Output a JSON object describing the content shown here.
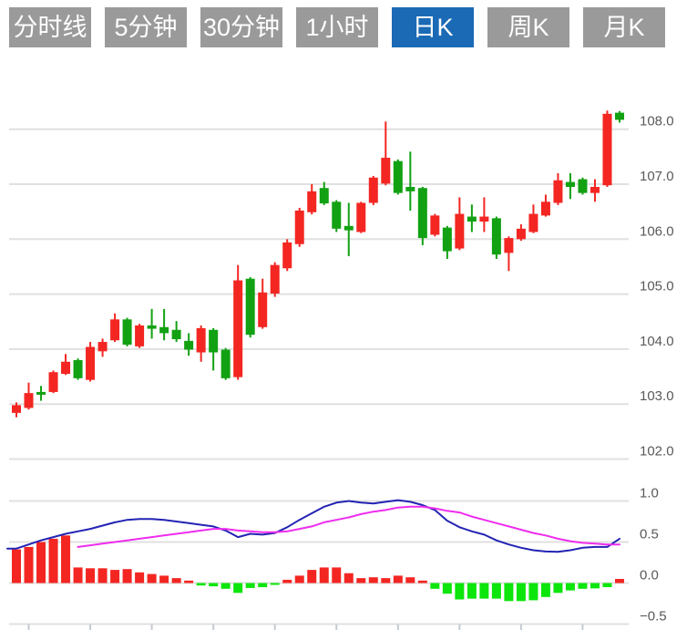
{
  "tabs": {
    "items": [
      {
        "label": "分时线",
        "active": false
      },
      {
        "label": "5分钟",
        "active": false
      },
      {
        "label": "30分钟",
        "active": false
      },
      {
        "label": "1小时",
        "active": false
      },
      {
        "label": "日K",
        "active": true
      },
      {
        "label": "周K",
        "active": false
      },
      {
        "label": "月K",
        "active": false
      }
    ]
  },
  "colors": {
    "tab_bg": "#9a9a9a",
    "tab_active_bg": "#1b6ab5",
    "tab_text": "#ffffff",
    "grid": "#e0e0e0",
    "axis_tick": "#c5cbd2",
    "axis_text": "#595959",
    "candle_up": "#f32622",
    "candle_down": "#12a112",
    "hist_up": "#f32622",
    "hist_down": "#0ce60c",
    "dif_line": "#2323b4",
    "dea_line": "#ee2dee"
  },
  "chart_data": {
    "type": "candlestick",
    "panels": [
      {
        "name": "price",
        "y_ticks": [
          "108.0",
          "107.0",
          "106.0",
          "105.0",
          "104.0",
          "103.0",
          "102.0"
        ],
        "ylim": [
          101.6,
          108.6
        ],
        "grid": true,
        "legend": "none",
        "ohlc_order": [
          "open",
          "close",
          "high",
          "low"
        ],
        "candles": [
          [
            102.84,
            102.98,
            103.03,
            102.76
          ],
          [
            102.93,
            103.2,
            103.39,
            102.9
          ],
          [
            103.22,
            103.17,
            103.33,
            103.06
          ],
          [
            103.22,
            103.58,
            103.61,
            103.2
          ],
          [
            103.55,
            103.77,
            103.91,
            103.53
          ],
          [
            103.8,
            103.47,
            103.83,
            103.44
          ],
          [
            103.44,
            104.04,
            104.13,
            103.41
          ],
          [
            103.96,
            104.13,
            104.19,
            103.86
          ],
          [
            104.16,
            104.54,
            104.65,
            104.13
          ],
          [
            104.54,
            104.08,
            104.57,
            104.05
          ],
          [
            104.05,
            104.43,
            104.46,
            104.02
          ],
          [
            104.43,
            104.37,
            104.73,
            104.19
          ],
          [
            104.4,
            104.29,
            104.73,
            104.16
          ],
          [
            104.35,
            104.18,
            104.51,
            104.13
          ],
          [
            104.15,
            103.99,
            104.29,
            103.88
          ],
          [
            103.94,
            104.38,
            104.43,
            103.77
          ],
          [
            104.35,
            103.94,
            104.38,
            103.61
          ],
          [
            103.99,
            103.47,
            104.02,
            103.44
          ],
          [
            103.49,
            105.25,
            105.53,
            103.44
          ],
          [
            105.28,
            104.26,
            105.31,
            104.21
          ],
          [
            104.4,
            105.03,
            105.28,
            104.37
          ],
          [
            105.01,
            105.53,
            105.58,
            104.95
          ],
          [
            105.47,
            105.94,
            106.0,
            105.42
          ],
          [
            105.91,
            106.52,
            106.57,
            105.86
          ],
          [
            106.49,
            106.87,
            107.0,
            106.45
          ],
          [
            106.93,
            106.65,
            107.04,
            106.62
          ],
          [
            106.68,
            106.19,
            106.71,
            106.13
          ],
          [
            106.24,
            106.16,
            106.66,
            105.69
          ],
          [
            106.13,
            106.66,
            106.68,
            106.11
          ],
          [
            106.66,
            107.12,
            107.15,
            106.62
          ],
          [
            107.01,
            107.48,
            108.14,
            106.98
          ],
          [
            107.42,
            106.84,
            107.45,
            106.81
          ],
          [
            106.95,
            106.87,
            107.59,
            106.52
          ],
          [
            106.93,
            106.02,
            106.95,
            105.89
          ],
          [
            106.08,
            106.43,
            106.46,
            106.05
          ],
          [
            106.21,
            105.78,
            106.24,
            105.64
          ],
          [
            105.83,
            106.46,
            106.76,
            105.8
          ],
          [
            106.41,
            106.32,
            106.63,
            106.13
          ],
          [
            106.32,
            106.41,
            106.76,
            106.13
          ],
          [
            106.38,
            105.72,
            106.41,
            105.64
          ],
          [
            105.75,
            106.02,
            106.05,
            105.42
          ],
          [
            106.0,
            106.19,
            106.27,
            105.97
          ],
          [
            106.13,
            106.46,
            106.63,
            106.11
          ],
          [
            106.43,
            106.68,
            106.81,
            106.41
          ],
          [
            106.66,
            107.07,
            107.2,
            106.62
          ],
          [
            107.04,
            106.95,
            107.2,
            106.73
          ],
          [
            107.09,
            106.84,
            107.12,
            106.81
          ],
          [
            106.84,
            106.95,
            107.09,
            106.68
          ],
          [
            106.98,
            108.28,
            108.34,
            106.95
          ],
          [
            108.3,
            108.17,
            108.33,
            108.12
          ]
        ]
      },
      {
        "name": "macd",
        "y_ticks": [
          "1.0",
          "0.5",
          "0.0",
          "−0.5"
        ],
        "ylim": [
          -0.5,
          1.1
        ],
        "grid": true,
        "histogram": [
          0.41,
          0.44,
          0.5,
          0.54,
          0.58,
          0.19,
          0.18,
          0.18,
          0.16,
          0.17,
          0.13,
          0.11,
          0.09,
          0.06,
          0.03,
          -0.03,
          -0.04,
          -0.07,
          -0.12,
          -0.06,
          -0.05,
          -0.02,
          0.04,
          0.09,
          0.16,
          0.19,
          0.19,
          0.12,
          0.06,
          0.07,
          0.06,
          0.09,
          0.07,
          0.03,
          -0.07,
          -0.13,
          -0.2,
          -0.19,
          -0.19,
          -0.19,
          -0.22,
          -0.22,
          -0.21,
          -0.17,
          -0.12,
          -0.09,
          -0.07,
          -0.065,
          -0.05,
          0.05
        ],
        "series": [
          {
            "name": "DIF",
            "values": [
              0.42,
              0.47,
              0.52,
              0.56,
              0.6,
              0.63,
              0.66,
              0.7,
              0.74,
              0.77,
              0.78,
              0.78,
              0.77,
              0.75,
              0.73,
              0.71,
              0.69,
              0.64,
              0.56,
              0.6,
              0.59,
              0.61,
              0.68,
              0.77,
              0.85,
              0.93,
              0.98,
              1.0,
              0.98,
              0.97,
              0.99,
              1.01,
              0.99,
              0.95,
              0.89,
              0.76,
              0.68,
              0.63,
              0.59,
              0.52,
              0.47,
              0.43,
              0.4,
              0.385,
              0.38,
              0.4,
              0.43,
              0.44,
              0.44,
              0.54
            ]
          },
          {
            "name": "DEA",
            "values": [
              null,
              null,
              null,
              null,
              null,
              0.44,
              0.46,
              0.48,
              0.5,
              0.52,
              0.54,
              0.56,
              0.58,
              0.6,
              0.62,
              0.64,
              0.66,
              0.66,
              0.64,
              0.63,
              0.62,
              0.62,
              0.63,
              0.66,
              0.69,
              0.74,
              0.77,
              0.8,
              0.84,
              0.87,
              0.89,
              0.92,
              0.93,
              0.93,
              0.91,
              0.88,
              0.86,
              0.81,
              0.77,
              0.73,
              0.69,
              0.65,
              0.61,
              0.58,
              0.54,
              0.51,
              0.49,
              0.48,
              0.47,
              0.47
            ]
          }
        ]
      }
    ]
  }
}
